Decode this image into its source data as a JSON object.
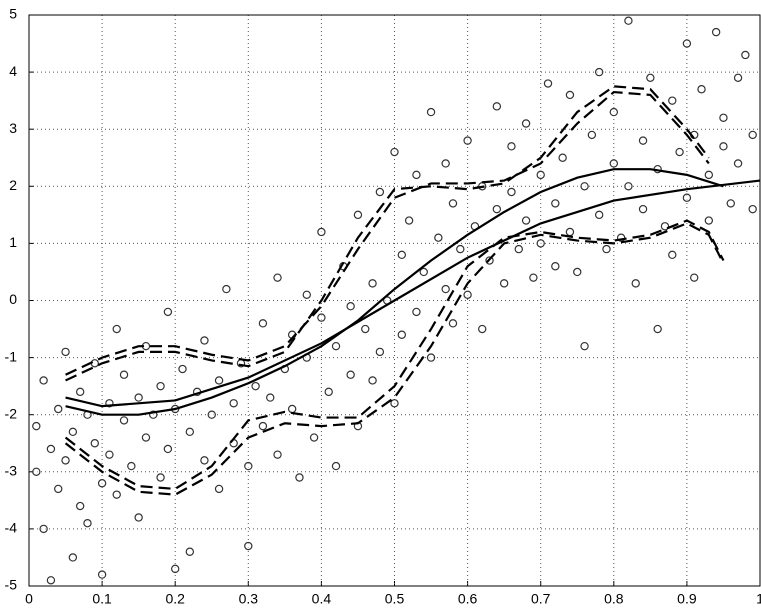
{
  "chart_data": {
    "type": "scatter",
    "xlim": [
      0,
      1
    ],
    "ylim": [
      -5,
      5
    ],
    "xticks": [
      0,
      0.1,
      0.2,
      0.3,
      0.4,
      0.5,
      0.6,
      0.7,
      0.8,
      0.9,
      1
    ],
    "yticks": [
      -5,
      -4,
      -3,
      -2,
      -1,
      0,
      1,
      2,
      3,
      4,
      5
    ],
    "grid": true,
    "series": [
      {
        "color": "#333333",
        "marker": "circle",
        "x": [
          0.01,
          0.01,
          0.02,
          0.02,
          0.03,
          0.03,
          0.04,
          0.04,
          0.05,
          0.05,
          0.06,
          0.06,
          0.07,
          0.07,
          0.08,
          0.08,
          0.09,
          0.09,
          0.1,
          0.1,
          0.11,
          0.11,
          0.12,
          0.12,
          0.13,
          0.13,
          0.14,
          0.15,
          0.15,
          0.16,
          0.16,
          0.17,
          0.18,
          0.18,
          0.19,
          0.19,
          0.2,
          0.2,
          0.21,
          0.22,
          0.22,
          0.23,
          0.24,
          0.24,
          0.25,
          0.26,
          0.26,
          0.27,
          0.28,
          0.28,
          0.29,
          0.3,
          0.3,
          0.31,
          0.32,
          0.32,
          0.33,
          0.34,
          0.34,
          0.35,
          0.36,
          0.36,
          0.37,
          0.38,
          0.38,
          0.39,
          0.4,
          0.4,
          0.41,
          0.42,
          0.42,
          0.43,
          0.44,
          0.44,
          0.45,
          0.45,
          0.46,
          0.47,
          0.47,
          0.48,
          0.48,
          0.49,
          0.5,
          0.5,
          0.51,
          0.51,
          0.52,
          0.53,
          0.53,
          0.54,
          0.55,
          0.55,
          0.56,
          0.57,
          0.57,
          0.58,
          0.58,
          0.59,
          0.6,
          0.6,
          0.61,
          0.62,
          0.62,
          0.63,
          0.64,
          0.64,
          0.65,
          0.66,
          0.66,
          0.67,
          0.68,
          0.68,
          0.69,
          0.7,
          0.7,
          0.71,
          0.72,
          0.72,
          0.73,
          0.74,
          0.74,
          0.75,
          0.76,
          0.76,
          0.77,
          0.78,
          0.78,
          0.79,
          0.8,
          0.8,
          0.81,
          0.82,
          0.82,
          0.83,
          0.84,
          0.84,
          0.85,
          0.86,
          0.86,
          0.87,
          0.88,
          0.88,
          0.89,
          0.9,
          0.9,
          0.91,
          0.91,
          0.92,
          0.93,
          0.93,
          0.94,
          0.95,
          0.95,
          0.96,
          0.97,
          0.97,
          0.98,
          0.99,
          0.99
        ],
        "values": [
          -2.2,
          -3.0,
          -1.4,
          -4.0,
          -2.6,
          -4.9,
          -1.9,
          -3.3,
          -2.8,
          -0.9,
          -2.3,
          -4.5,
          -3.6,
          -1.6,
          -2.0,
          -3.9,
          -2.5,
          -1.1,
          -3.2,
          -4.8,
          -1.8,
          -2.7,
          -0.5,
          -3.4,
          -2.1,
          -1.3,
          -2.9,
          -1.7,
          -3.8,
          -2.4,
          -0.8,
          -2.0,
          -1.5,
          -3.1,
          -2.6,
          -0.2,
          -1.9,
          -4.7,
          -1.2,
          -2.3,
          -4.4,
          -1.6,
          -2.8,
          -0.7,
          -2.0,
          -1.4,
          -3.3,
          0.2,
          -1.8,
          -2.5,
          -1.1,
          -2.9,
          -4.3,
          -1.5,
          -0.4,
          -2.2,
          -1.7,
          0.4,
          -2.7,
          -1.2,
          -0.6,
          -1.9,
          -3.1,
          -1.0,
          0.1,
          -2.4,
          -0.3,
          1.2,
          -1.6,
          -0.8,
          -2.9,
          0.6,
          -1.3,
          -0.1,
          1.5,
          -2.2,
          -0.5,
          0.3,
          -1.4,
          1.9,
          -0.9,
          0.0,
          2.6,
          -1.8,
          0.8,
          -0.6,
          1.4,
          -0.2,
          2.2,
          0.5,
          -1.0,
          3.3,
          1.1,
          0.2,
          2.4,
          -0.4,
          1.7,
          0.9,
          2.8,
          0.1,
          1.3,
          -0.5,
          2.0,
          0.7,
          1.6,
          3.4,
          0.3,
          1.9,
          2.7,
          0.9,
          1.4,
          3.1,
          0.4,
          2.2,
          1.0,
          3.8,
          1.7,
          0.6,
          2.5,
          1.2,
          3.6,
          0.5,
          2.0,
          -0.8,
          2.9,
          1.5,
          4.0,
          0.9,
          2.4,
          3.3,
          1.1,
          4.9,
          2.0,
          0.3,
          2.8,
          1.6,
          3.9,
          -0.5,
          2.3,
          1.3,
          3.5,
          0.8,
          2.6,
          4.5,
          1.8,
          2.9,
          0.4,
          3.7,
          2.2,
          1.4,
          4.7,
          2.7,
          3.2,
          1.7,
          3.9,
          2.4,
          4.3,
          1.6,
          2.9
        ]
      },
      {
        "color": "#000000",
        "line_style": "solid",
        "x": [
          0.05,
          0.1,
          0.15,
          0.2,
          0.25,
          0.3,
          0.35,
          0.4,
          0.45,
          0.5,
          0.55,
          0.6,
          0.65,
          0.7,
          0.75,
          0.8,
          0.85,
          0.9,
          0.95
        ],
        "values": [
          -1.85,
          -2.0,
          -2.0,
          -1.9,
          -1.7,
          -1.45,
          -1.15,
          -0.8,
          -0.35,
          0.2,
          0.7,
          1.15,
          1.55,
          1.9,
          2.15,
          2.3,
          2.3,
          2.2,
          2.0
        ]
      },
      {
        "color": "#000000",
        "line_style": "solid",
        "x": [
          0.05,
          0.1,
          0.2,
          0.3,
          0.4,
          0.5,
          0.6,
          0.7,
          0.8,
          0.9,
          1
        ],
        "values": [
          -1.7,
          -1.85,
          -1.75,
          -1.35,
          -0.75,
          0.0,
          0.75,
          1.35,
          1.75,
          1.95,
          2.1
        ]
      },
      {
        "color": "#000000",
        "line_style": "dashed",
        "x": [
          0.05,
          0.1,
          0.15,
          0.2,
          0.25,
          0.3,
          0.35,
          0.4,
          0.45,
          0.5,
          0.55,
          0.6,
          0.65,
          0.7,
          0.75,
          0.8,
          0.85,
          0.9,
          0.93
        ],
        "values": [
          -1.3,
          -1.0,
          -0.8,
          -0.8,
          -0.95,
          -1.05,
          -0.8,
          -0.1,
          0.9,
          1.8,
          2.05,
          2.05,
          2.1,
          2.4,
          3.1,
          3.65,
          3.6,
          2.9,
          2.4
        ]
      },
      {
        "color": "#000000",
        "line_style": "dashed",
        "x": [
          0.05,
          0.1,
          0.15,
          0.2,
          0.25,
          0.3,
          0.35,
          0.4,
          0.45,
          0.5,
          0.55,
          0.6,
          0.65,
          0.7,
          0.75,
          0.8,
          0.85,
          0.9,
          0.93
        ],
        "values": [
          -1.4,
          -1.1,
          -0.9,
          -0.9,
          -1.05,
          -1.15,
          -0.9,
          0.0,
          1.1,
          1.95,
          2.0,
          1.95,
          2.05,
          2.5,
          3.3,
          3.75,
          3.7,
          3.0,
          2.5
        ]
      },
      {
        "color": "#000000",
        "line_style": "dashed",
        "x": [
          0.05,
          0.1,
          0.15,
          0.2,
          0.25,
          0.3,
          0.35,
          0.4,
          0.45,
          0.5,
          0.55,
          0.6,
          0.65,
          0.7,
          0.75,
          0.8,
          0.85,
          0.9,
          0.93,
          0.95
        ],
        "values": [
          -2.4,
          -2.9,
          -3.25,
          -3.3,
          -2.9,
          -2.1,
          -1.95,
          -2.05,
          -2.05,
          -1.5,
          -0.5,
          0.6,
          1.1,
          1.2,
          1.1,
          1.05,
          1.15,
          1.4,
          1.2,
          0.7
        ]
      },
      {
        "color": "#000000",
        "line_style": "dashed",
        "x": [
          0.05,
          0.1,
          0.15,
          0.2,
          0.25,
          0.3,
          0.35,
          0.4,
          0.45,
          0.5,
          0.55,
          0.6,
          0.65,
          0.7,
          0.75,
          0.8,
          0.85,
          0.9,
          0.93,
          0.95
        ],
        "values": [
          -2.5,
          -3.0,
          -3.35,
          -3.4,
          -3.05,
          -2.4,
          -2.15,
          -2.2,
          -2.15,
          -1.7,
          -0.8,
          0.3,
          1.0,
          1.15,
          1.05,
          1.0,
          1.1,
          1.35,
          1.15,
          0.65
        ]
      }
    ]
  }
}
